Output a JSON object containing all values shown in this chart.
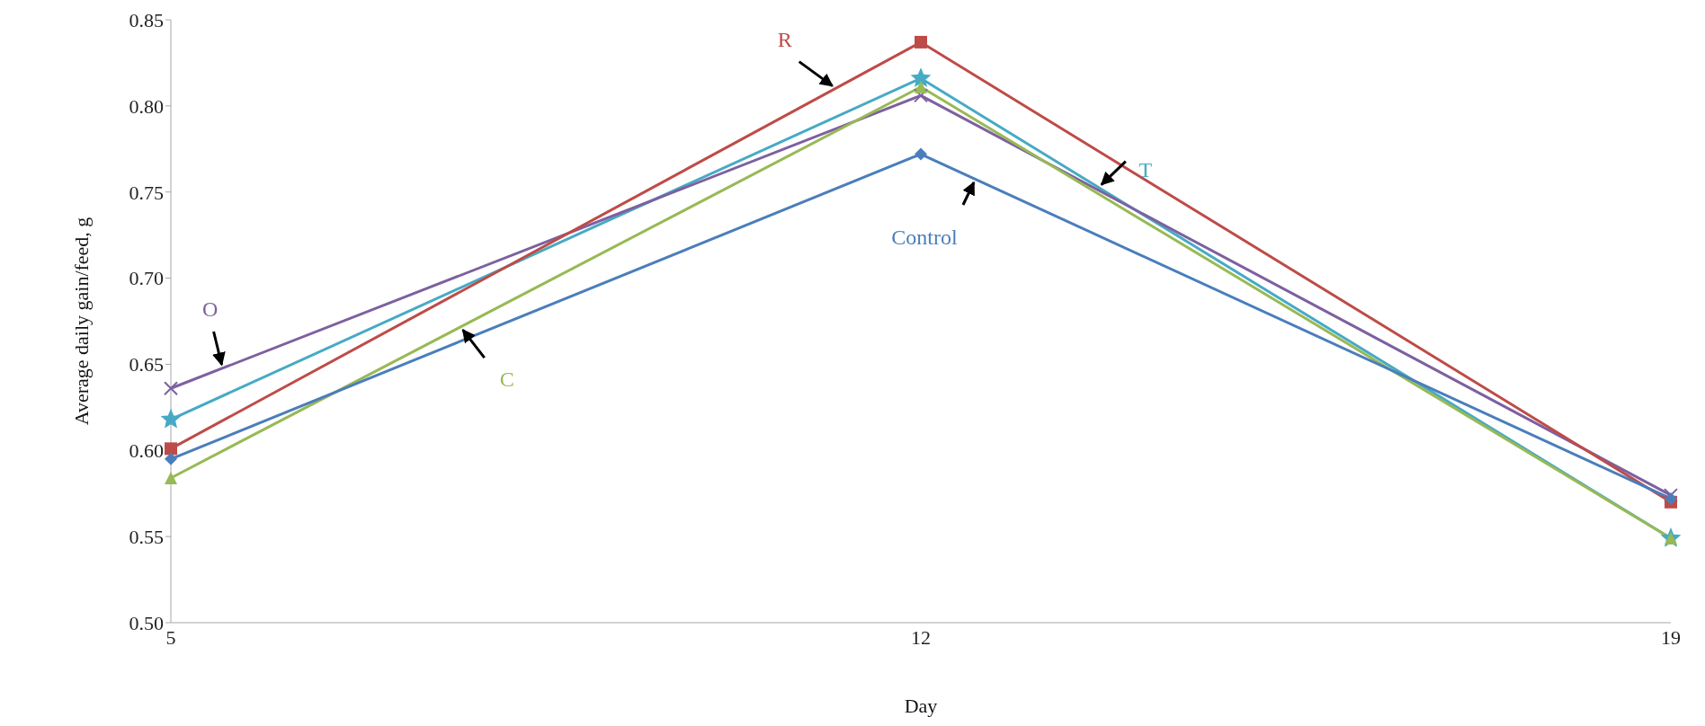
{
  "chart_data": {
    "type": "line",
    "xlabel": "Day",
    "ylabel": "Average daily gain/feed, g",
    "x": [
      5,
      12,
      19
    ],
    "xlim": [
      5,
      19
    ],
    "xticks": [
      5,
      12,
      19
    ],
    "ylim": [
      0.5,
      0.85
    ],
    "yticks": [
      {
        "value": 0.5,
        "label": "0.50"
      },
      {
        "value": 0.55,
        "label": "0.55"
      },
      {
        "value": 0.6,
        "label": "0.60"
      },
      {
        "value": 0.65,
        "label": "0.65"
      },
      {
        "value": 0.7,
        "label": "0.70"
      },
      {
        "value": 0.75,
        "label": "0.75"
      },
      {
        "value": 0.8,
        "label": "0.80"
      },
      {
        "value": 0.85,
        "label": "0.85"
      }
    ],
    "grid": false,
    "legend": false,
    "series": [
      {
        "name": "Control",
        "color": "#4a7ebb",
        "marker": "diamond",
        "values": [
          0.595,
          0.772,
          0.572
        ]
      },
      {
        "name": "R",
        "color": "#be4b48",
        "marker": "square",
        "values": [
          0.601,
          0.837,
          0.57
        ]
      },
      {
        "name": "C",
        "color": "#98b954",
        "marker": "triangle",
        "values": [
          0.584,
          0.811,
          0.549
        ]
      },
      {
        "name": "O",
        "color": "#7d60a0",
        "marker": "cross",
        "values": [
          0.636,
          0.806,
          0.574
        ]
      },
      {
        "name": "T",
        "color": "#46aac5",
        "marker": "star",
        "values": [
          0.618,
          0.816,
          0.549
        ]
      }
    ]
  }
}
